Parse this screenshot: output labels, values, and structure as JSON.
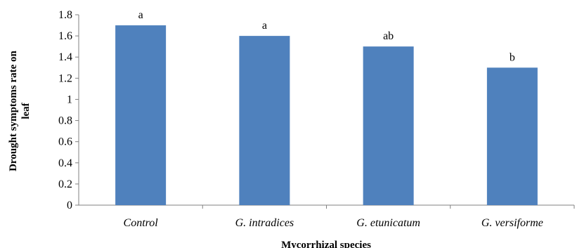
{
  "chart_data": {
    "type": "bar",
    "categories": [
      "Control",
      "G. intradices",
      "G. etunicatum",
      "G. versiforme"
    ],
    "values": [
      1.7,
      1.6,
      1.5,
      1.3
    ],
    "significance_letters": [
      "a",
      "a",
      "ab",
      "b"
    ],
    "yticks": [
      "0",
      "0.2",
      "0.4",
      "0.6",
      "0.8",
      "1",
      "1.2",
      "1.4",
      "1.6",
      "1.8"
    ],
    "ylim": [
      0,
      1.8
    ],
    "xlabel": "Mycorrhizal species",
    "ylabel_lines": [
      "Drought symptoms rate on",
      "leaf"
    ],
    "title": "",
    "grid": false,
    "bar_color": "#4F81BD"
  }
}
